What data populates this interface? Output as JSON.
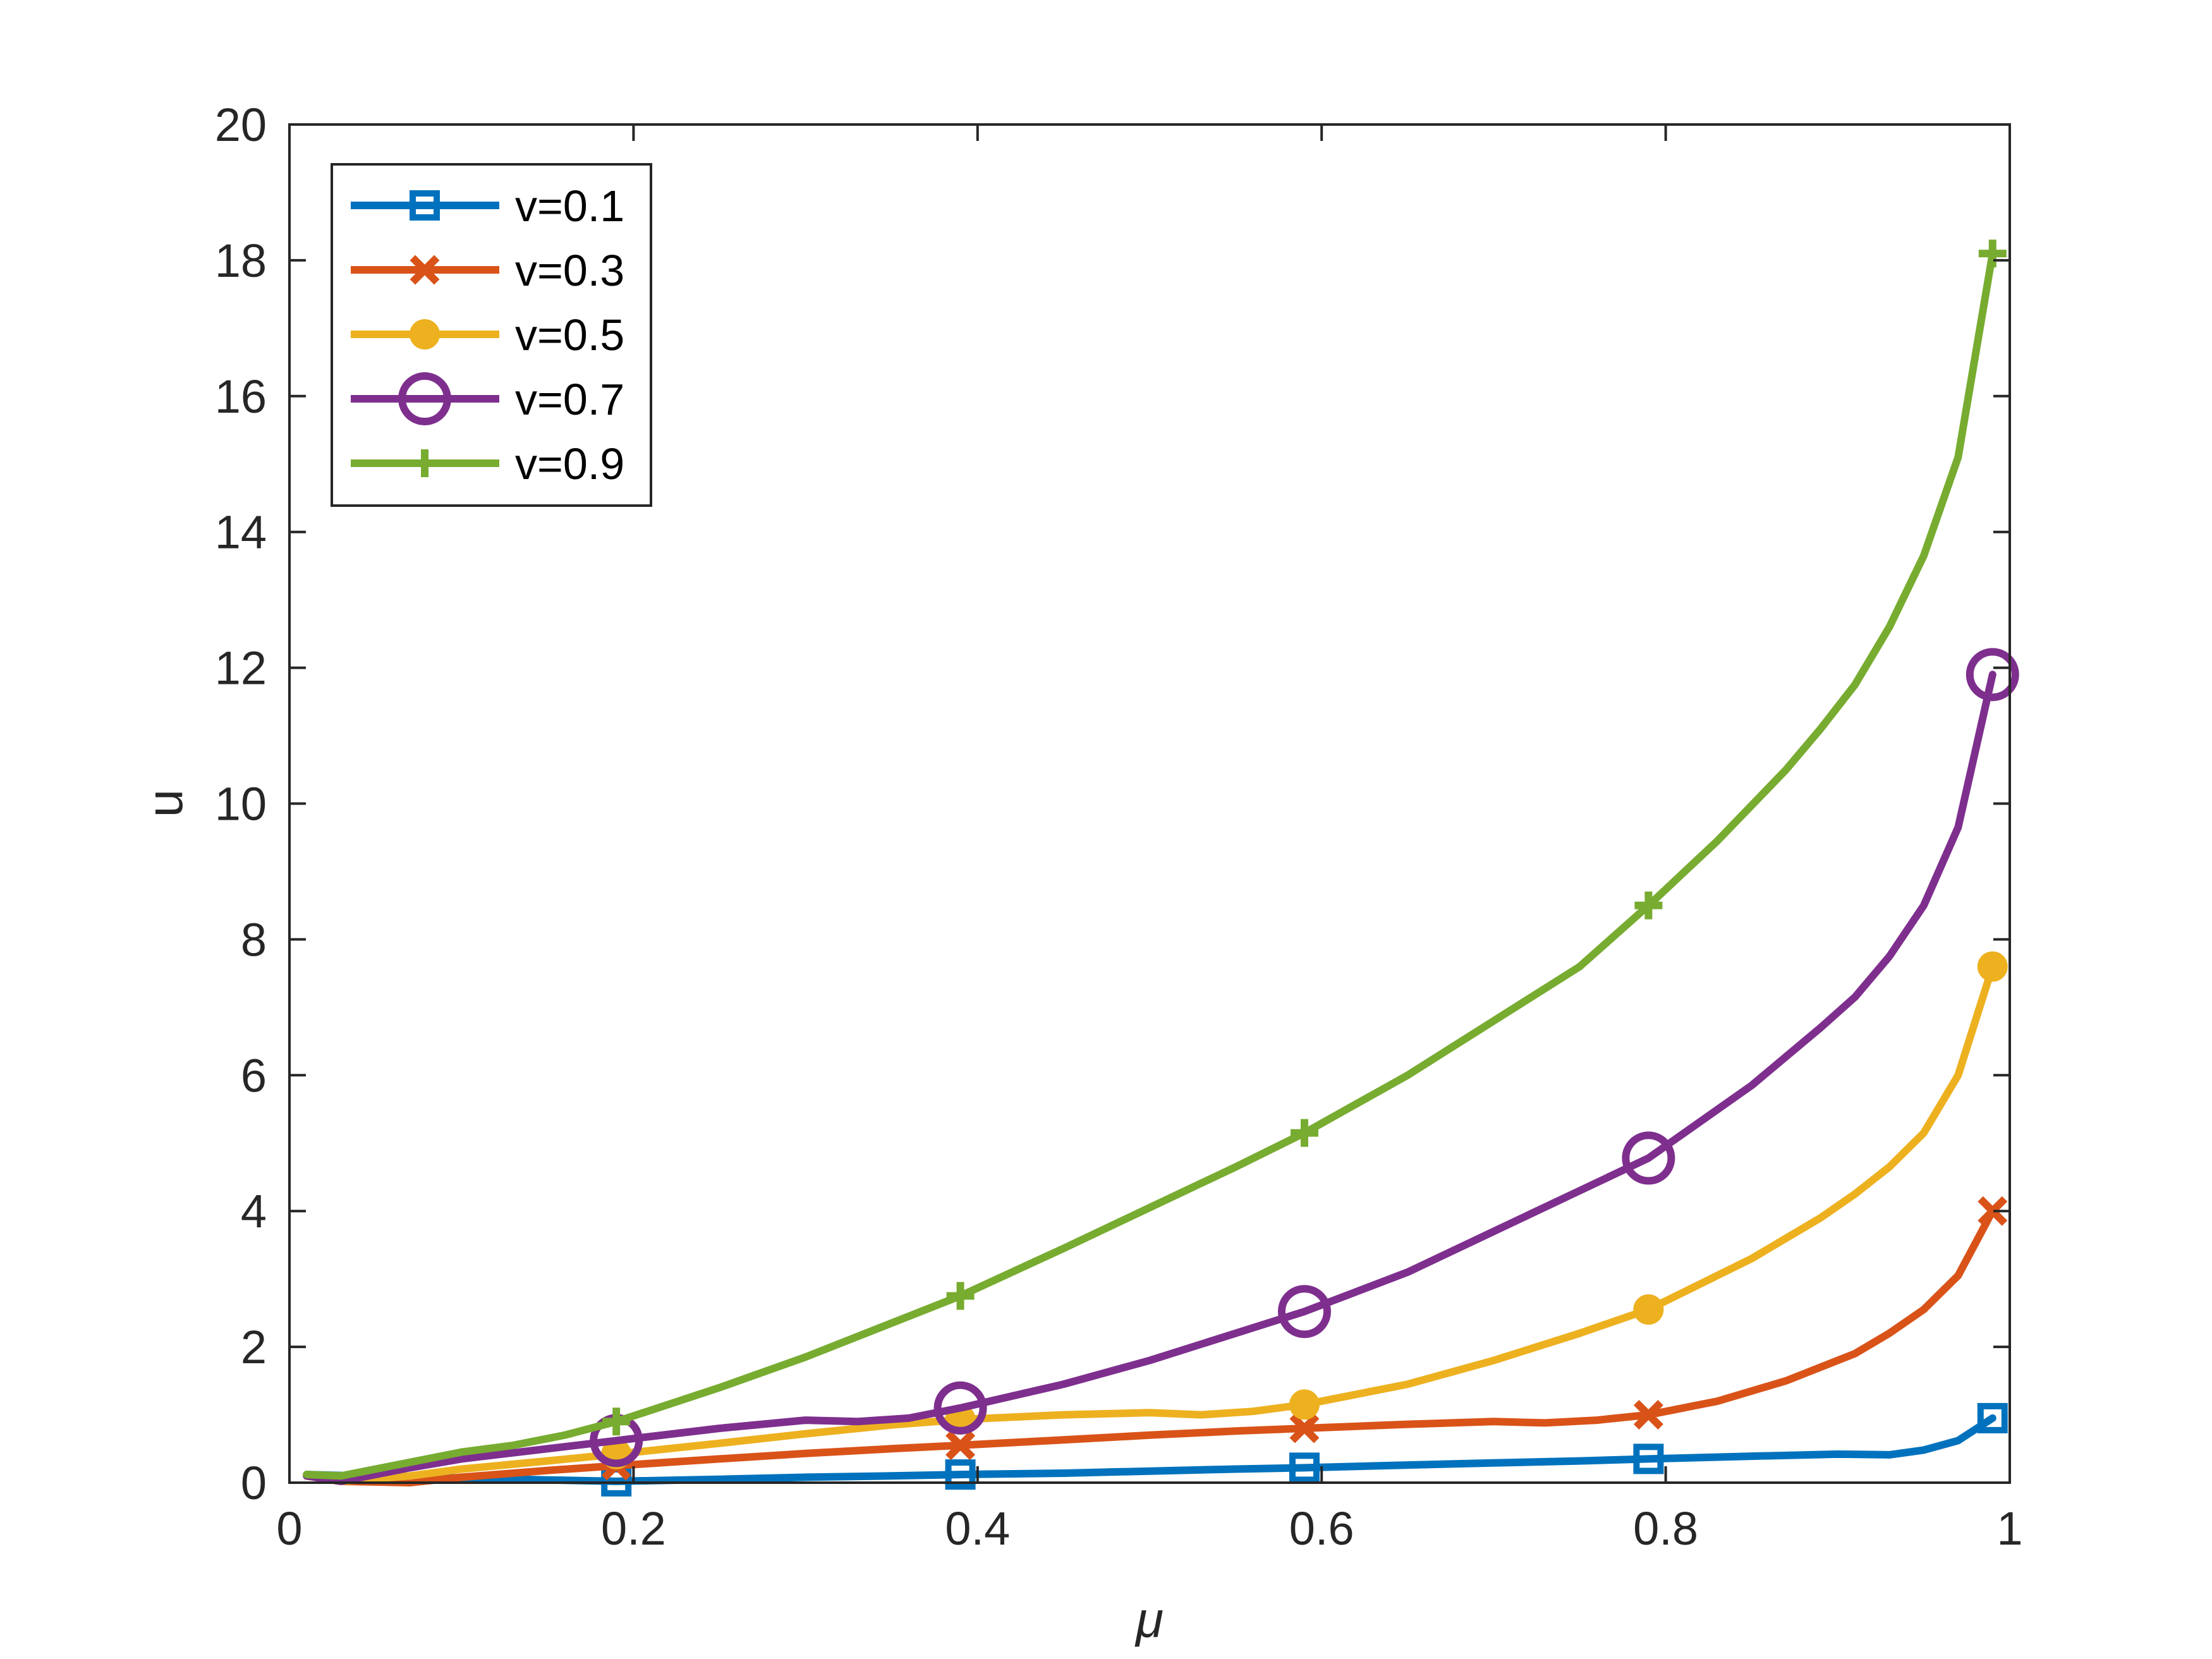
{
  "chart_data": {
    "type": "line",
    "xlabel": "μ",
    "ylabel": "u",
    "xlim": [
      0,
      1
    ],
    "ylim": [
      0,
      20
    ],
    "xticks": [
      "0",
      "0.2",
      "0.4",
      "0.6",
      "0.8",
      "1"
    ],
    "yticks": [
      "0",
      "2",
      "4",
      "6",
      "8",
      "10",
      "12",
      "14",
      "16",
      "18",
      "20"
    ],
    "grid": false,
    "legend_position": "top-left",
    "series": [
      {
        "name": "v=0.1",
        "color": "#0072BD",
        "marker": "square",
        "x": [
          0.01,
          0.05,
          0.1,
          0.15,
          0.19,
          0.25,
          0.3,
          0.35,
          0.39,
          0.45,
          0.5,
          0.55,
          0.59,
          0.65,
          0.7,
          0.75,
          0.79,
          0.85,
          0.9,
          0.93,
          0.95,
          0.97,
          0.99
        ],
        "y": [
          0.12,
          0.09,
          0.07,
          0.04,
          0.02,
          0.05,
          0.08,
          0.1,
          0.12,
          0.14,
          0.17,
          0.2,
          0.22,
          0.26,
          0.29,
          0.32,
          0.35,
          0.39,
          0.42,
          0.41,
          0.48,
          0.62,
          0.95
        ],
        "marker_x": [
          0.19,
          0.39,
          0.59,
          0.79,
          0.99
        ],
        "marker_y": [
          0.02,
          0.12,
          0.22,
          0.35,
          0.95
        ]
      },
      {
        "name": "v=0.3",
        "color": "#D95319",
        "marker": "x",
        "x": [
          0.01,
          0.03,
          0.07,
          0.1,
          0.15,
          0.19,
          0.25,
          0.3,
          0.35,
          0.39,
          0.45,
          0.5,
          0.55,
          0.59,
          0.65,
          0.7,
          0.73,
          0.76,
          0.79,
          0.83,
          0.87,
          0.91,
          0.93,
          0.95,
          0.97,
          0.99
        ],
        "y": [
          0.1,
          0.02,
          0.0,
          0.08,
          0.18,
          0.25,
          0.35,
          0.43,
          0.5,
          0.55,
          0.63,
          0.7,
          0.76,
          0.8,
          0.86,
          0.9,
          0.88,
          0.92,
          1.0,
          1.2,
          1.5,
          1.9,
          2.2,
          2.55,
          3.05,
          4.0
        ],
        "marker_x": [
          0.19,
          0.39,
          0.59,
          0.79,
          0.99
        ],
        "marker_y": [
          0.25,
          0.55,
          0.8,
          1.0,
          4.0
        ]
      },
      {
        "name": "v=0.5",
        "color": "#EDB120",
        "marker": "filled-circle",
        "x": [
          0.01,
          0.03,
          0.07,
          0.1,
          0.15,
          0.19,
          0.25,
          0.3,
          0.35,
          0.39,
          0.45,
          0.5,
          0.53,
          0.56,
          0.59,
          0.65,
          0.7,
          0.75,
          0.79,
          0.85,
          0.89,
          0.91,
          0.93,
          0.95,
          0.97,
          0.99
        ],
        "y": [
          0.1,
          0.02,
          0.1,
          0.2,
          0.32,
          0.42,
          0.58,
          0.72,
          0.85,
          0.93,
          1.0,
          1.03,
          1.0,
          1.05,
          1.15,
          1.45,
          1.8,
          2.2,
          2.55,
          3.3,
          3.9,
          4.25,
          4.65,
          5.15,
          6.0,
          7.6
        ],
        "marker_x": [
          0.19,
          0.39,
          0.59,
          0.79,
          0.99
        ],
        "marker_y": [
          0.42,
          0.93,
          1.15,
          2.55,
          7.6
        ]
      },
      {
        "name": "v=0.7",
        "color": "#7E2F8E",
        "marker": "open-circle",
        "x": [
          0.01,
          0.03,
          0.07,
          0.1,
          0.15,
          0.19,
          0.25,
          0.3,
          0.33,
          0.36,
          0.39,
          0.45,
          0.5,
          0.55,
          0.59,
          0.65,
          0.7,
          0.75,
          0.79,
          0.85,
          0.89,
          0.91,
          0.93,
          0.95,
          0.97,
          0.99
        ],
        "y": [
          0.1,
          0.02,
          0.22,
          0.35,
          0.5,
          0.62,
          0.8,
          0.92,
          0.9,
          0.95,
          1.1,
          1.45,
          1.8,
          2.2,
          2.52,
          3.1,
          3.7,
          4.3,
          4.78,
          5.85,
          6.7,
          7.15,
          7.75,
          8.5,
          9.65,
          11.9
        ],
        "marker_x": [
          0.19,
          0.39,
          0.59,
          0.79,
          0.99
        ],
        "marker_y": [
          0.62,
          1.1,
          2.52,
          4.78,
          11.9
        ]
      },
      {
        "name": "v=0.9",
        "color": "#77AC30",
        "marker": "plus",
        "x": [
          0.01,
          0.03,
          0.07,
          0.1,
          0.13,
          0.16,
          0.19,
          0.25,
          0.3,
          0.35,
          0.39,
          0.45,
          0.5,
          0.55,
          0.59,
          0.65,
          0.7,
          0.75,
          0.79,
          0.83,
          0.87,
          0.89,
          0.91,
          0.93,
          0.95,
          0.97,
          0.99
        ],
        "y": [
          0.12,
          0.1,
          0.3,
          0.45,
          0.55,
          0.7,
          0.9,
          1.4,
          1.85,
          2.35,
          2.75,
          3.45,
          4.05,
          4.65,
          5.15,
          6.0,
          6.8,
          7.6,
          8.5,
          9.45,
          10.5,
          11.1,
          11.75,
          12.6,
          13.65,
          15.1,
          18.1
        ],
        "marker_x": [
          0.19,
          0.39,
          0.59,
          0.79,
          0.99
        ],
        "marker_y": [
          0.9,
          2.75,
          5.15,
          8.5,
          18.1
        ]
      }
    ]
  }
}
